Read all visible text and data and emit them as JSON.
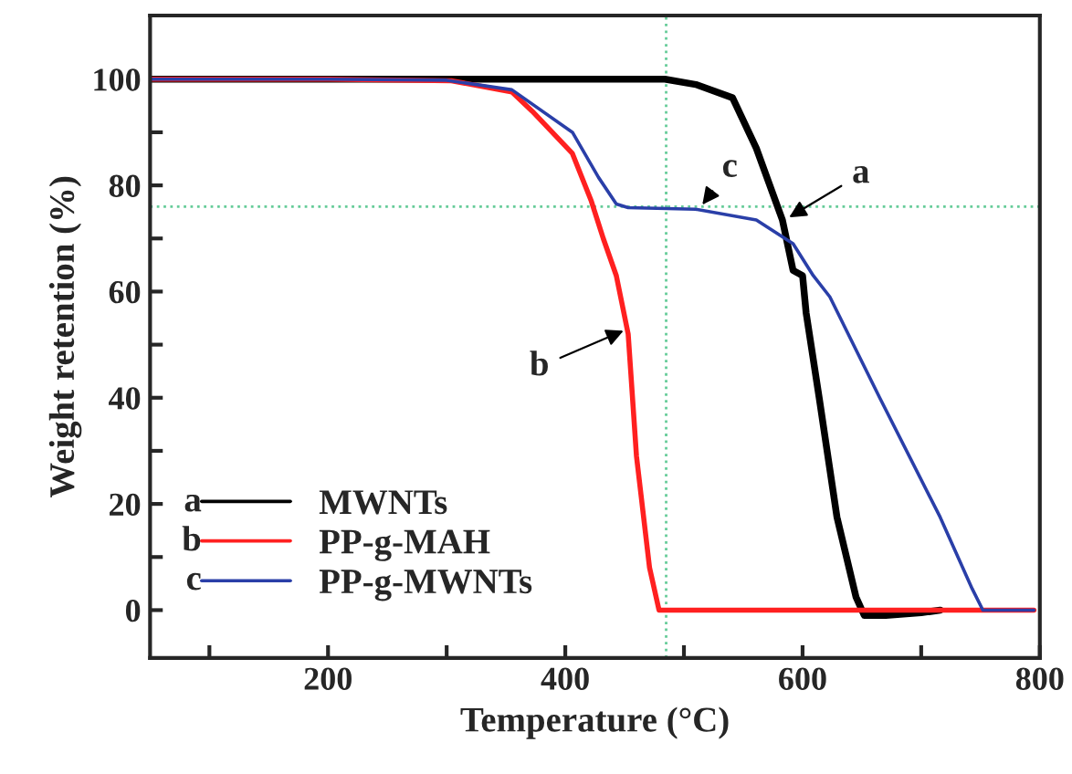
{
  "chart_data": {
    "type": "line",
    "xlabel": "Temperature (°C)",
    "ylabel": "Weight retention (%)",
    "xlim": [
      50,
      800
    ],
    "ylim": [
      -9,
      112
    ],
    "xticks": [
      {
        "value": 100,
        "label": null
      },
      200,
      {
        "value": 300,
        "label": null
      },
      400,
      {
        "value": 500,
        "label": null
      },
      600,
      {
        "value": 700,
        "label": null
      },
      800
    ],
    "yticks": [
      0,
      {
        "value": 10,
        "label": null
      },
      20,
      {
        "value": 30,
        "label": null
      },
      40,
      {
        "value": 50,
        "label": null
      },
      60,
      {
        "value": 70,
        "label": null
      },
      80,
      {
        "value": 90,
        "label": null
      },
      100
    ],
    "grid": false,
    "legend": "bottom left",
    "marker": "none",
    "line_style": "solid",
    "series": [
      {
        "name": "MWNTs",
        "color": "#000000",
        "x": [
          50,
          200,
          350,
          484,
          510,
          541,
          561,
          583,
          592,
          600,
          603,
          614,
          629,
          645,
          652,
          670,
          700,
          716
        ],
        "values": [
          100,
          100,
          100,
          100,
          99,
          96.5,
          87,
          73.5,
          64,
          63,
          56,
          40,
          17.5,
          2.5,
          -1,
          -1,
          -0.5,
          0
        ]
      },
      {
        "name": "PP-g-MAH",
        "color": "#ff2020",
        "x": [
          50,
          200,
          304,
          355,
          372,
          406,
          422,
          432,
          443,
          453,
          460,
          471,
          479,
          795
        ],
        "values": [
          100,
          100,
          99.7,
          97.6,
          94,
          86,
          77,
          70,
          63,
          52,
          29,
          8,
          0,
          0
        ]
      },
      {
        "name": "PP-g-MWNTs",
        "color": "#2a3fa8",
        "x": [
          50,
          200,
          300,
          355,
          406,
          428,
          443,
          453,
          510,
          561,
          592,
          609,
          623,
          665,
          716,
          743,
          752,
          795
        ],
        "values": [
          100,
          100,
          99.8,
          98,
          90,
          81.5,
          76.5,
          75.8,
          75.5,
          73.5,
          69,
          63,
          59,
          40,
          17.5,
          4,
          0,
          0
        ]
      }
    ],
    "ref_lines": [
      {
        "axis": "x",
        "value": 485,
        "color": "#66cc99",
        "line_style": "dotted"
      },
      {
        "axis": "y",
        "value": 76,
        "color": "#66cc99",
        "line_style": "dotted"
      }
    ],
    "annotations": [
      {
        "text": "a",
        "x": 585,
        "y": 73.5
      },
      {
        "text": "b",
        "x": 453,
        "y": 53
      },
      {
        "text": "c",
        "x": 513,
        "y": 75.6
      },
      "a",
      "b",
      "c"
    ]
  }
}
